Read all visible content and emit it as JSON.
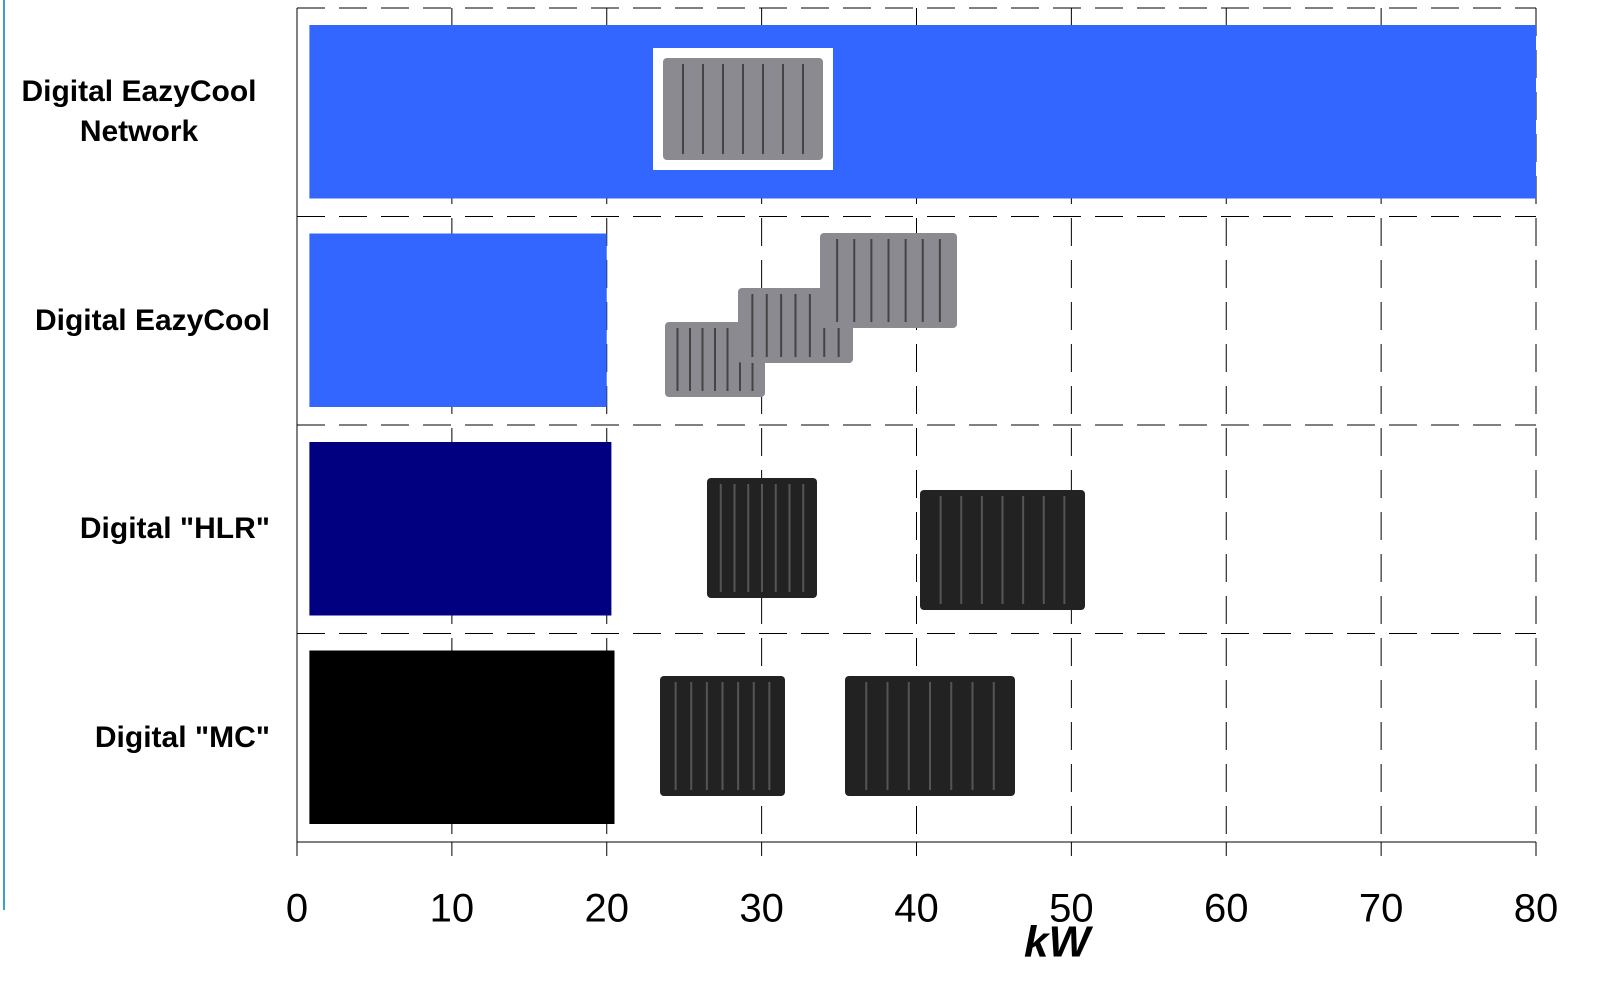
{
  "chart_data": {
    "type": "range-bar",
    "categories": [
      "Digital EazyCool Network",
      "Digital EazyCool",
      "Digital \"HLR\"",
      "Digital \"MC\""
    ],
    "starts": [
      0.8,
      0.8,
      0.8,
      0.8
    ],
    "values": [
      80,
      20,
      20.3,
      20.5
    ],
    "colors": [
      "#3366ff",
      "#3366ff",
      "#000080",
      "#000000"
    ],
    "xlim": [
      0,
      80
    ],
    "xticks": [
      0,
      10,
      20,
      30,
      40,
      50,
      60,
      70,
      80
    ],
    "xlabel": "kW",
    "grid": true
  }
}
